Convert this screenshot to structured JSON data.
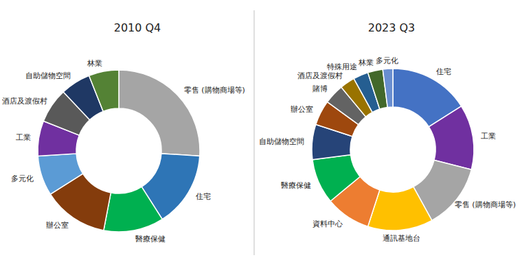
{
  "chart_data": [
    {
      "type": "donut",
      "title": "2010 Q4",
      "categories": [
        "零售 (購物商場等)",
        "住宅",
        "醫療保健",
        "辦公室",
        "多元化",
        "工業",
        "酒店及渡假村",
        "自助儲物空間",
        "林業"
      ],
      "values": [
        26,
        15,
        12,
        13,
        8,
        7,
        7,
        6,
        6
      ],
      "colors": [
        "#a5a5a5",
        "#2e75b6",
        "#00b050",
        "#843c0c",
        "#5b9bd5",
        "#7030a0",
        "#595959",
        "#1f3864",
        "#548235"
      ]
    },
    {
      "type": "donut",
      "title": "2023 Q3",
      "categories": [
        "住宅",
        "工業",
        "零售 (購物商場等)",
        "通訊基地台",
        "資料中心",
        "醫療保健",
        "自助儲物空間",
        "辦公室",
        "賭博",
        "酒店及渡假村",
        "特殊用途",
        "林業",
        "多元化"
      ],
      "values": [
        16,
        13,
        13,
        13,
        9,
        9,
        7,
        5,
        4,
        3,
        3,
        3,
        2
      ],
      "colors": [
        "#4472c4",
        "#7030a0",
        "#a5a5a5",
        "#ffc000",
        "#ed7d31",
        "#00b050",
        "#264478",
        "#9e480e",
        "#636363",
        "#997300",
        "#255e91",
        "#43682b",
        "#698ed0"
      ]
    }
  ]
}
